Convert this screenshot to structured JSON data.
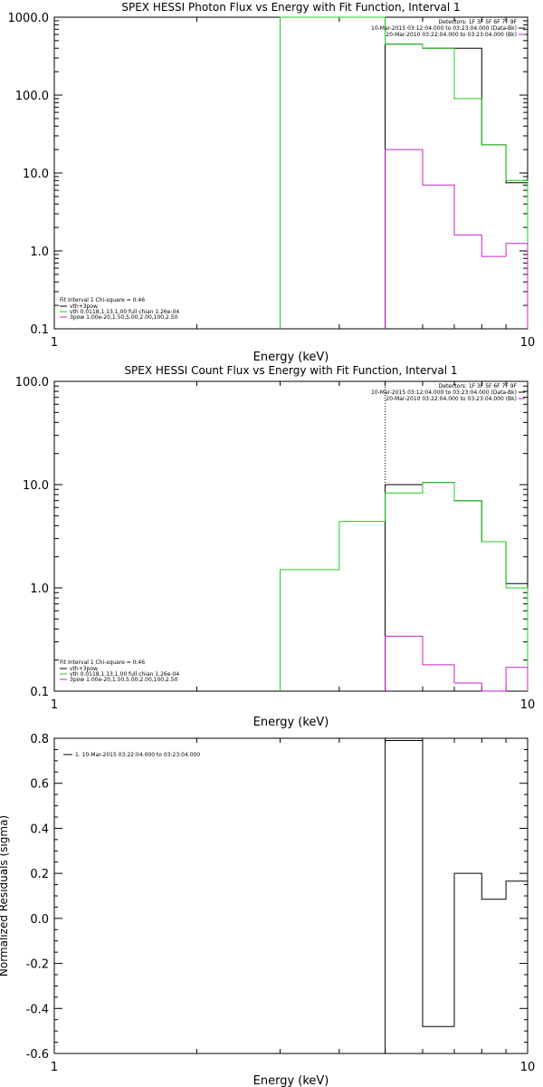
{
  "chart_data": [
    {
      "type": "line",
      "title": "SPEX HESSI Photon Flux vs Energy with Fit Function, Interval 1",
      "xlabel": "Energy (keV)",
      "ylabel": "",
      "xscale": "log",
      "yscale": "log",
      "xlim": [
        1,
        10
      ],
      "ylim": [
        0.1,
        1000
      ],
      "x_ticks": [
        "1",
        "10"
      ],
      "y_ticks": [
        "0.1",
        "1.0",
        "10.0",
        "100.0",
        "1000.0"
      ],
      "vline": 5.0,
      "legend_top_right": [
        "Detectors: 1F 3F 5F 6F 7F 9F",
        "10-Mar-2015 03:12:04.000 to 03:23:04.000 (Data-Bk)",
        "20-Mar-2010 03:22:04.000 to 03:23:04.000 (Bk)"
      ],
      "legend_bottom_left": {
        "header": "Fit Interval 1    Chi-square = 0.46",
        "items": [
          "vth+3pow",
          "vth 0.0118,1.13,1.00  full chian 1.26e-04",
          "3pow 1.00e-20,1.50,5.00,2.00,100,2.50"
        ]
      },
      "series": [
        {
          "name": "vth+3pow",
          "color": "#000000",
          "edges": [
            5,
            6,
            7,
            8,
            9,
            10
          ],
          "values": [
            450,
            400,
            400,
            23,
            7.5
          ]
        },
        {
          "name": "vth 0.0118,1.13,1.00  full chian 1.26e-04",
          "color": "#22cc22",
          "edges": [
            3,
            4,
            5,
            6,
            7,
            8,
            9,
            10
          ],
          "values": [
            1000,
            1000,
            450,
            400,
            90,
            23,
            8
          ]
        },
        {
          "name": "3pow 1.00e-20,1.50,5.00,2.00,100,2.50",
          "color": "#cc22cc",
          "edges": [
            5,
            6,
            7,
            8,
            9,
            10
          ],
          "values": [
            20,
            7,
            1.6,
            0.85,
            1.25
          ]
        }
      ]
    },
    {
      "type": "line",
      "title": "SPEX HESSI Count Flux vs Energy with Fit Function, Interval 1",
      "xlabel": "Energy (keV)",
      "ylabel": "",
      "xscale": "log",
      "yscale": "log",
      "xlim": [
        1,
        10
      ],
      "ylim": [
        0.1,
        100
      ],
      "x_ticks": [
        "1",
        "10"
      ],
      "y_ticks": [
        "0.1",
        "1.0",
        "10.0",
        "100.0"
      ],
      "vline": 5.0,
      "legend_top_right": [
        "Detectors: 1F 3F 5F 6F 7F 9F",
        "10-Mar-2015 03:12:04.000 to 03:23:04.000 (Data-Bk)",
        "20-Mar-2010 03:22:04.000 to 03:23:04.000 (Bk)"
      ],
      "legend_bottom_left": {
        "header": "Fit Interval 1    Chi-square = 0.46",
        "items": [
          "vth+3pow",
          "vth 0.0118,1.13,1.00  full chian 1.26e-04",
          "3pow 1.00e-20,1.50,5.00,2.00,100,2.50"
        ]
      },
      "series": [
        {
          "name": "vth+3pow",
          "color": "#000000",
          "edges": [
            5,
            6,
            7,
            8,
            9,
            10
          ],
          "values": [
            10.0,
            10.5,
            7.0,
            2.8,
            1.1
          ]
        },
        {
          "name": "vth 0.0118,1.13,1.00  full chian 1.26e-04",
          "color": "#22cc22",
          "edges": [
            3,
            4,
            5,
            6,
            7,
            8,
            9,
            10
          ],
          "values": [
            1.5,
            4.4,
            8.3,
            10.5,
            7.0,
            2.8,
            1.0
          ]
        },
        {
          "name": "3pow 1.00e-20,1.50,5.00,2.00,100,2.50",
          "color": "#cc22cc",
          "edges": [
            5,
            6,
            7,
            8,
            9,
            10
          ],
          "values": [
            0.34,
            0.18,
            0.12,
            0.1,
            0.17
          ]
        }
      ]
    },
    {
      "type": "line",
      "title": "",
      "xlabel": "Energy (keV)",
      "ylabel": "Normalized Residuals (sigma)",
      "xscale": "log",
      "yscale": "linear",
      "xlim": [
        1,
        10
      ],
      "ylim": [
        -0.6,
        0.8
      ],
      "x_ticks": [
        "1",
        "10"
      ],
      "y_ticks": [
        "-0.6",
        "-0.4",
        "-0.2",
        "0.0",
        "0.2",
        "0.4",
        "0.6",
        "0.8"
      ],
      "legend_top_left": "1. 10-Mar-2015 03:22:04.000 to 03:23:04.000",
      "series": [
        {
          "name": "1. 10-Mar-2015 03:22:04.000 to 03:23:04.000",
          "color": "#000000",
          "edges": [
            5,
            6,
            7,
            8,
            9,
            10
          ],
          "values": [
            0.79,
            -0.48,
            0.2,
            0.085,
            0.165
          ]
        }
      ]
    }
  ]
}
